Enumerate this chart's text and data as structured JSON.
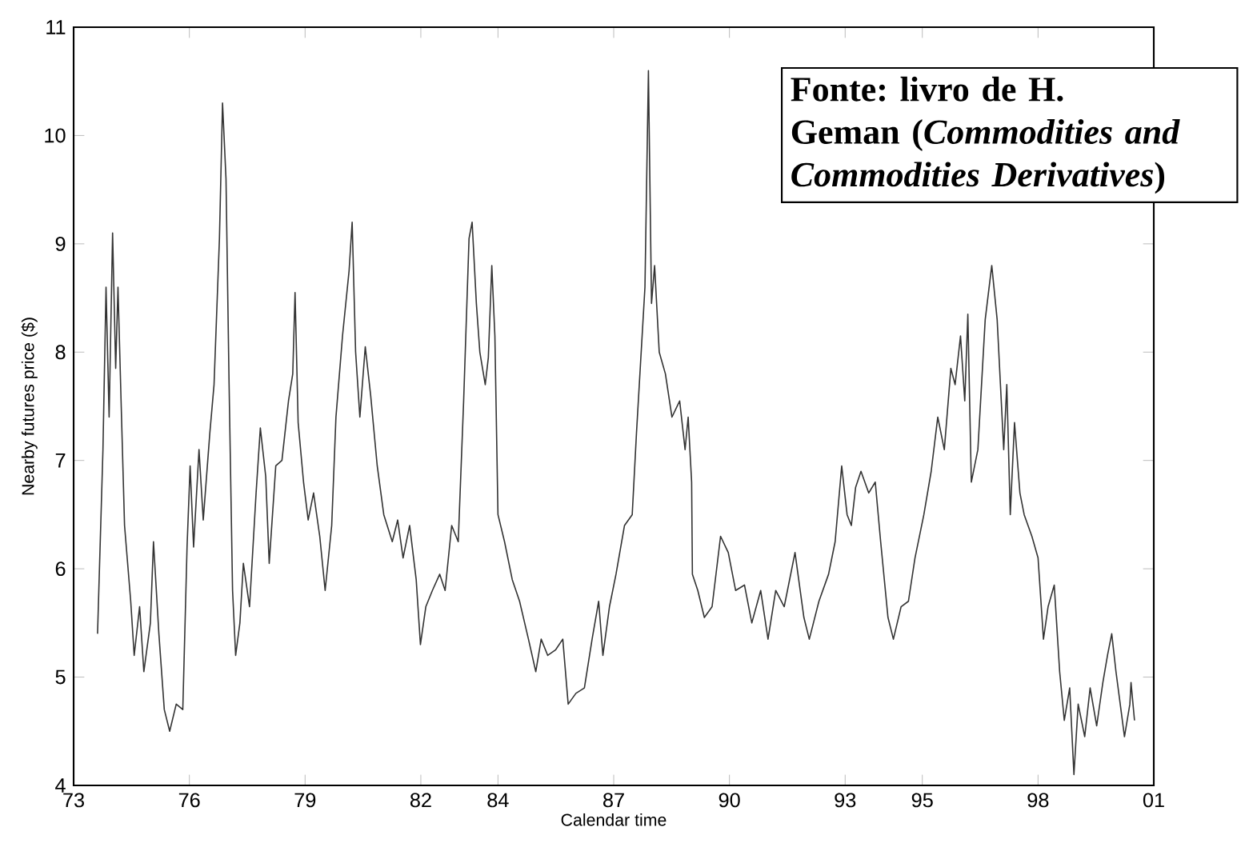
{
  "chart_data": {
    "type": "line",
    "xlabel": "Calendar time",
    "ylabel": "Nearby futures price ($)",
    "annotations": [
      "Fonte: livro de H. Geman (*Commodities and Commodities Derivatives*)"
    ],
    "xlim": [
      1973,
      2001
    ],
    "ylim": [
      4,
      11
    ],
    "xticks": [
      {
        "value": 1973,
        "label": "73"
      },
      {
        "value": 1976,
        "label": "76"
      },
      {
        "value": 1979,
        "label": "79"
      },
      {
        "value": 1982,
        "label": "82"
      },
      {
        "value": 1984,
        "label": "84"
      },
      {
        "value": 1987,
        "label": "87"
      },
      {
        "value": 1990,
        "label": "90"
      },
      {
        "value": 1993,
        "label": "93"
      },
      {
        "value": 1995,
        "label": "95"
      },
      {
        "value": 1998,
        "label": "98"
      },
      {
        "value": 2001,
        "label": "01"
      }
    ],
    "yticks": [
      4,
      5,
      6,
      7,
      8,
      9,
      10,
      11
    ],
    "x": [
      1973.62,
      1973.76,
      1973.84,
      1973.92,
      1974.01,
      1974.09,
      1974.15,
      1974.23,
      1974.32,
      1974.48,
      1974.57,
      1974.71,
      1974.82,
      1974.99,
      1975.07,
      1975.21,
      1975.35,
      1975.49,
      1975.66,
      1975.83,
      1975.94,
      1976.02,
      1976.11,
      1976.25,
      1976.36,
      1976.53,
      1976.64,
      1976.78,
      1976.86,
      1976.95,
      1977.03,
      1977.12,
      1977.2,
      1977.31,
      1977.4,
      1977.56,
      1977.73,
      1977.84,
      1977.98,
      1978.07,
      1978.24,
      1978.4,
      1978.57,
      1978.68,
      1978.74,
      1978.82,
      1978.96,
      1979.08,
      1979.22,
      1979.38,
      1979.52,
      1979.69,
      1979.8,
      1979.97,
      1980.14,
      1980.22,
      1980.31,
      1980.42,
      1980.56,
      1980.7,
      1980.87,
      1981.04,
      1981.26,
      1981.4,
      1981.54,
      1981.71,
      1981.88,
      1981.99,
      1982.13,
      1982.3,
      1982.49,
      1982.63,
      1982.8,
      1982.97,
      1983.11,
      1983.25,
      1983.33,
      1983.44,
      1983.53,
      1983.67,
      1983.75,
      1983.84,
      1983.92,
      1984.0,
      1984.17,
      1984.37,
      1984.56,
      1984.79,
      1984.98,
      1985.12,
      1985.29,
      1985.49,
      1985.68,
      1985.82,
      1986.02,
      1986.24,
      1986.44,
      1986.61,
      1986.72,
      1986.89,
      1987.06,
      1987.28,
      1987.48,
      1987.59,
      1987.81,
      1987.9,
      1987.98,
      1988.06,
      1988.18,
      1988.34,
      1988.51,
      1988.71,
      1988.85,
      1988.93,
      1989.02,
      1989.04,
      1989.18,
      1989.35,
      1989.55,
      1989.77,
      1989.97,
      1990.16,
      1990.39,
      1990.58,
      1990.81,
      1991.0,
      1991.2,
      1991.42,
      1991.7,
      1991.93,
      1992.07,
      1992.32,
      1992.57,
      1992.74,
      1992.91,
      1993.05,
      1993.16,
      1993.27,
      1993.41,
      1993.61,
      1993.78,
      1993.92,
      1994.11,
      1994.25,
      1994.45,
      1994.64,
      1994.81,
      1995.04,
      1995.23,
      1995.4,
      1995.57,
      1995.74,
      1995.85,
      1995.99,
      1996.1,
      1996.18,
      1996.27,
      1996.44,
      1996.63,
      1996.8,
      1996.94,
      1997.11,
      1997.19,
      1997.28,
      1997.39,
      1997.53,
      1997.64,
      1997.84,
      1998.0,
      1998.14,
      1998.26,
      1998.42,
      1998.56,
      1998.68,
      1998.82,
      1998.93,
      1999.04,
      1999.21,
      1999.35,
      1999.52,
      1999.68,
      1999.8,
      1999.91,
      2000.02,
      2000.13,
      2000.24,
      2000.38,
      2000.41,
      2000.5
    ],
    "series": [
      {
        "color": "#333333",
        "values": [
          5.4,
          7.1,
          8.6,
          7.4,
          9.1,
          7.85,
          8.6,
          7.55,
          6.4,
          5.7,
          5.2,
          5.65,
          5.05,
          5.5,
          6.25,
          5.4,
          4.7,
          4.5,
          4.75,
          4.7,
          6.2,
          6.95,
          6.2,
          7.1,
          6.45,
          7.25,
          7.7,
          9.05,
          10.3,
          9.6,
          7.7,
          5.8,
          5.2,
          5.5,
          6.05,
          5.65,
          6.7,
          7.3,
          6.85,
          6.05,
          6.95,
          7.0,
          7.55,
          7.8,
          8.55,
          7.35,
          6.8,
          6.45,
          6.7,
          6.3,
          5.8,
          6.4,
          7.4,
          8.15,
          8.75,
          9.2,
          8.0,
          7.4,
          8.05,
          7.6,
          6.95,
          6.5,
          6.25,
          6.45,
          6.1,
          6.4,
          5.9,
          5.3,
          5.65,
          5.8,
          5.95,
          5.8,
          6.4,
          6.25,
          7.55,
          9.05,
          9.2,
          8.45,
          8.0,
          7.7,
          7.95,
          8.8,
          8.15,
          6.5,
          6.25,
          5.9,
          5.7,
          5.35,
          5.05,
          5.35,
          5.2,
          5.25,
          5.35,
          4.75,
          4.85,
          4.9,
          5.35,
          5.7,
          5.2,
          5.65,
          5.95,
          6.4,
          6.5,
          7.25,
          8.6,
          10.6,
          8.45,
          8.8,
          8.0,
          7.8,
          7.4,
          7.55,
          7.1,
          7.4,
          6.8,
          5.95,
          5.8,
          5.55,
          5.65,
          6.3,
          6.15,
          5.8,
          5.85,
          5.5,
          5.8,
          5.35,
          5.8,
          5.65,
          6.15,
          5.55,
          5.35,
          5.7,
          5.95,
          6.25,
          6.95,
          6.5,
          6.4,
          6.75,
          6.9,
          6.7,
          6.8,
          6.25,
          5.55,
          5.35,
          5.65,
          5.7,
          6.1,
          6.5,
          6.9,
          7.4,
          7.1,
          7.85,
          7.7,
          8.15,
          7.55,
          8.35,
          6.8,
          7.1,
          8.3,
          8.8,
          8.3,
          7.1,
          7.7,
          6.5,
          7.35,
          6.7,
          6.5,
          6.3,
          6.1,
          5.35,
          5.65,
          5.85,
          5.05,
          4.6,
          4.9,
          4.1,
          4.75,
          4.45,
          4.9,
          4.55,
          4.95,
          5.2,
          5.4,
          5.05,
          4.75,
          4.45,
          4.75,
          4.95,
          4.6
        ]
      }
    ],
    "marker": "none",
    "line_style": "solid",
    "grid": false
  }
}
